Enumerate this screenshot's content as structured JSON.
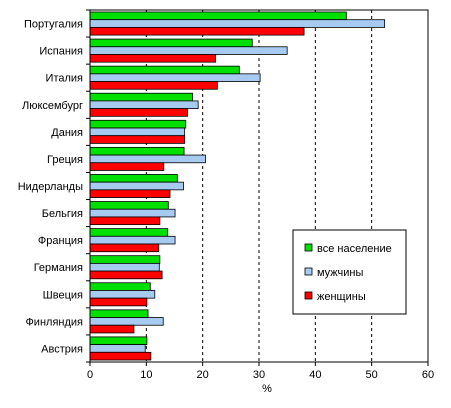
{
  "chart_data": {
    "type": "bar",
    "orientation": "horizontal",
    "categories": [
      "Португалия",
      "Испания",
      "Италия",
      "Люксембург",
      "Дания",
      "Греция",
      "Нидерланды",
      "Бельгия",
      "Франция",
      "Германия",
      "Швеция",
      "Финляндия",
      "Австрия"
    ],
    "series": [
      {
        "name": "все население",
        "color": "#00e000",
        "values": [
          45.5,
          28.8,
          26.5,
          18.2,
          17.0,
          16.7,
          15.5,
          13.9,
          13.8,
          12.4,
          10.7,
          10.3,
          10.1
        ]
      },
      {
        "name": "мужчины",
        "color": "#a6caf0",
        "values": [
          52.3,
          35.0,
          30.2,
          19.2,
          16.8,
          20.5,
          16.6,
          15.1,
          15.1,
          12.3,
          11.5,
          13.0,
          9.8
        ]
      },
      {
        "name": "женщины",
        "color": "#ff0000",
        "values": [
          38.0,
          22.3,
          22.6,
          17.3,
          16.8,
          13.1,
          14.2,
          12.4,
          12.2,
          12.8,
          10.1,
          7.8,
          10.8
        ]
      }
    ],
    "xlabel": "%",
    "xlim": [
      0,
      60
    ],
    "xticks": [
      0,
      10,
      20,
      30,
      40,
      50,
      60
    ],
    "grid": "vertical dashed",
    "legend_position": "lower-right"
  }
}
